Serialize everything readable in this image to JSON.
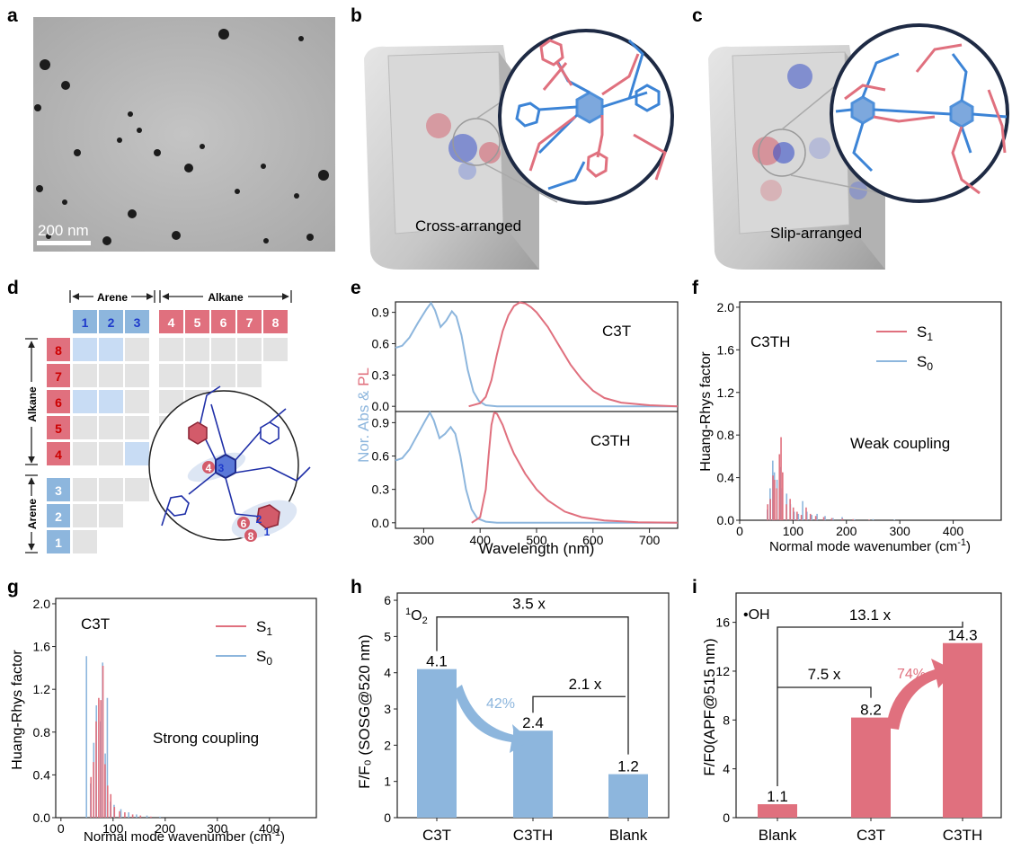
{
  "panel_letters": {
    "a": "a",
    "b": "b",
    "c": "c",
    "d": "d",
    "e": "e",
    "f": "f",
    "g": "g",
    "h": "h",
    "i": "i"
  },
  "panel_a": {
    "scale_bar": "200 nm"
  },
  "panel_b": {
    "label": "Cross-arranged"
  },
  "panel_c": {
    "label": "Slip-arranged"
  },
  "panel_d": {
    "arene_top": "Arene",
    "alkane_top": "Alkane",
    "alkane_side": "Alkane",
    "arene_side": "Arene",
    "col_labels": [
      "1",
      "2",
      "3",
      "4",
      "5",
      "6",
      "7",
      "8"
    ],
    "row_labels": [
      "8",
      "7",
      "6",
      "5",
      "4",
      "3",
      "2",
      "1"
    ],
    "mol_tags": {
      "a": "4",
      "b": "3",
      "c": "6",
      "d": "2",
      "e": "8",
      "f": "1"
    }
  },
  "chart_data": [
    {
      "id": "e",
      "type": "line",
      "xlabel": "Wavelength (nm)",
      "ylabel_abs": "Nor. Abs",
      "ylabel_amp": " & ",
      "ylabel_pl": "PL",
      "xlim": [
        250,
        750
      ],
      "ylim": [
        -0.05,
        1.0
      ],
      "xticks": [
        "300",
        "400",
        "500",
        "600",
        "700"
      ],
      "yticks": [
        "0.0",
        "0.3",
        "0.6",
        "0.9"
      ],
      "colors": {
        "abs": "#8db6dd",
        "pl": "#e0707e"
      },
      "panels": [
        {
          "name": "C3T",
          "abs": [
            [
              250,
              0.56
            ],
            [
              262,
              0.58
            ],
            [
              275,
              0.66
            ],
            [
              290,
              0.8
            ],
            [
              305,
              0.93
            ],
            [
              313,
              0.99
            ],
            [
              320,
              0.92
            ],
            [
              330,
              0.76
            ],
            [
              340,
              0.82
            ],
            [
              350,
              0.91
            ],
            [
              358,
              0.86
            ],
            [
              367,
              0.68
            ],
            [
              378,
              0.35
            ],
            [
              388,
              0.14
            ],
            [
              398,
              0.05
            ],
            [
              410,
              0.01
            ],
            [
              430,
              0.0
            ],
            [
              750,
              0.0
            ]
          ],
          "pl": [
            [
              380,
              0.0
            ],
            [
              400,
              0.03
            ],
            [
              410,
              0.09
            ],
            [
              420,
              0.25
            ],
            [
              430,
              0.5
            ],
            [
              440,
              0.72
            ],
            [
              450,
              0.87
            ],
            [
              460,
              0.96
            ],
            [
              470,
              0.995
            ],
            [
              480,
              0.985
            ],
            [
              490,
              0.95
            ],
            [
              500,
              0.9
            ],
            [
              520,
              0.76
            ],
            [
              540,
              0.58
            ],
            [
              560,
              0.4
            ],
            [
              580,
              0.26
            ],
            [
              600,
              0.15
            ],
            [
              620,
              0.08
            ],
            [
              650,
              0.035
            ],
            [
              700,
              0.01
            ],
            [
              750,
              0.0
            ]
          ]
        },
        {
          "name": "C3TH",
          "abs": [
            [
              250,
              0.56
            ],
            [
              262,
              0.58
            ],
            [
              275,
              0.66
            ],
            [
              290,
              0.8
            ],
            [
              303,
              0.92
            ],
            [
              311,
              0.99
            ],
            [
              318,
              0.92
            ],
            [
              328,
              0.76
            ],
            [
              338,
              0.8
            ],
            [
              348,
              0.86
            ],
            [
              356,
              0.8
            ],
            [
              365,
              0.6
            ],
            [
              375,
              0.3
            ],
            [
              385,
              0.12
            ],
            [
              395,
              0.04
            ],
            [
              410,
              0.01
            ],
            [
              430,
              0.0
            ],
            [
              750,
              0.0
            ]
          ],
          "pl": [
            [
              385,
              0.0
            ],
            [
              400,
              0.05
            ],
            [
              410,
              0.3
            ],
            [
              415,
              0.6
            ],
            [
              420,
              0.88
            ],
            [
              425,
              0.99
            ],
            [
              430,
              0.98
            ],
            [
              440,
              0.88
            ],
            [
              450,
              0.74
            ],
            [
              460,
              0.62
            ],
            [
              480,
              0.44
            ],
            [
              500,
              0.3
            ],
            [
              520,
              0.2
            ],
            [
              550,
              0.1
            ],
            [
              580,
              0.05
            ],
            [
              620,
              0.02
            ],
            [
              680,
              0.005
            ],
            [
              750,
              0.0
            ]
          ]
        }
      ]
    },
    {
      "id": "f",
      "type": "bar",
      "title": "C3TH",
      "annotation": "Weak  coupling",
      "xlabel": "Normal mode wavenumber (cm",
      "xlabel_sup": "-1",
      "xlabel_end": ")",
      "ylabel": "Huang-Rhys factor",
      "xlim": [
        0,
        490
      ],
      "ylim": [
        0,
        2.05
      ],
      "xticks": [
        "0",
        "100",
        "200",
        "300",
        "400"
      ],
      "yticks": [
        "0.0",
        "0.4",
        "0.8",
        "1.2",
        "1.6",
        "2.0"
      ],
      "legend": [
        {
          "name": "S",
          "sub": "1",
          "color": "#e0707e"
        },
        {
          "name": "S",
          "sub": "0",
          "color": "#8db6dd"
        }
      ],
      "s1": [
        [
          50,
          0.15
        ],
        [
          55,
          0.2
        ],
        [
          60,
          0.42
        ],
        [
          63,
          0.38
        ],
        [
          67,
          0.3
        ],
        [
          72,
          0.62
        ],
        [
          75,
          0.78
        ],
        [
          78,
          0.45
        ],
        [
          85,
          0.15
        ],
        [
          92,
          0.2
        ],
        [
          98,
          0.12
        ],
        [
          105,
          0.08
        ],
        [
          113,
          0.05
        ],
        [
          122,
          0.12
        ],
        [
          130,
          0.06
        ],
        [
          140,
          0.04
        ],
        [
          155,
          0.03
        ],
        [
          170,
          0.02
        ],
        [
          190,
          0.015
        ],
        [
          210,
          0.01
        ],
        [
          240,
          0.005
        ]
      ],
      "s0": [
        [
          52,
          0.1
        ],
        [
          57,
          0.3
        ],
        [
          62,
          0.56
        ],
        [
          65,
          0.45
        ],
        [
          70,
          0.38
        ],
        [
          76,
          0.5
        ],
        [
          80,
          0.3
        ],
        [
          88,
          0.25
        ],
        [
          95,
          0.15
        ],
        [
          102,
          0.08
        ],
        [
          110,
          0.06
        ],
        [
          118,
          0.18
        ],
        [
          126,
          0.08
        ],
        [
          135,
          0.05
        ],
        [
          145,
          0.06
        ],
        [
          160,
          0.04
        ],
        [
          175,
          0.02
        ],
        [
          192,
          0.03
        ],
        [
          215,
          0.01
        ],
        [
          250,
          0.01
        ],
        [
          290,
          0.005
        ]
      ]
    },
    {
      "id": "g",
      "type": "bar",
      "title": "C3T",
      "annotation": "Strong coupling",
      "xlabel": "Normal mode wavenumber (cm",
      "xlabel_sup": "-1",
      "xlabel_end": ")",
      "ylabel": "Huang-Rhys factor",
      "xlim": [
        -10,
        490
      ],
      "ylim": [
        0,
        2.05
      ],
      "xticks": [
        "0",
        "100",
        "200",
        "300",
        "400"
      ],
      "yticks": [
        "0.0",
        "0.4",
        "0.8",
        "1.2",
        "1.6",
        "2.0"
      ],
      "legend": [
        {
          "name": "S",
          "sub": "1",
          "color": "#e0707e"
        },
        {
          "name": "S",
          "sub": "0",
          "color": "#8db6dd"
        }
      ],
      "s1": [
        [
          55,
          0.38
        ],
        [
          60,
          0.52
        ],
        [
          65,
          0.9
        ],
        [
          70,
          1.12
        ],
        [
          74,
          1.1
        ],
        [
          78,
          1.42
        ],
        [
          82,
          0.5
        ],
        [
          87,
          0.3
        ],
        [
          93,
          0.22
        ],
        [
          100,
          0.1
        ],
        [
          110,
          0.06
        ],
        [
          120,
          0.05
        ],
        [
          135,
          0.03
        ],
        [
          150,
          0.02
        ],
        [
          170,
          0.01
        ]
      ],
      "s0": [
        [
          49,
          1.51
        ],
        [
          57,
          0.32
        ],
        [
          63,
          0.7
        ],
        [
          68,
          1.05
        ],
        [
          76,
          0.9
        ],
        [
          80,
          1.45
        ],
        [
          85,
          0.6
        ],
        [
          89,
          1.12
        ],
        [
          95,
          0.15
        ],
        [
          102,
          0.12
        ],
        [
          115,
          0.08
        ],
        [
          130,
          0.05
        ],
        [
          145,
          0.03
        ],
        [
          165,
          0.02
        ],
        [
          190,
          0.01
        ]
      ]
    },
    {
      "id": "h",
      "type": "bar",
      "ylabel": "F/F₀ (SOSG@520 nm)",
      "ylim": [
        0,
        6.2
      ],
      "yticks": [
        "0",
        "1",
        "2",
        "3",
        "4",
        "5",
        "6"
      ],
      "categories": [
        "C3T",
        "C3TH",
        "Blank"
      ],
      "values": [
        4.1,
        2.4,
        1.2
      ],
      "value_labels": [
        "4.1",
        "2.4",
        "1.2"
      ],
      "species_main": "O",
      "species_pre": "1",
      "species_sub": "2",
      "bracket_labels": [
        "3.5 x",
        "2.1 x"
      ],
      "pct": "42%",
      "color": "#8db6dd"
    },
    {
      "id": "i",
      "type": "bar",
      "ylabel": "F/F0(APF@515 nm)",
      "ylim": [
        0,
        18.4
      ],
      "yticks": [
        "0",
        "4",
        "8",
        "12",
        "16"
      ],
      "categories": [
        "Blank",
        "C3T",
        "C3TH"
      ],
      "values": [
        1.1,
        8.2,
        14.3
      ],
      "value_labels": [
        "1.1",
        "8.2",
        "14.3"
      ],
      "species": "•OH",
      "bracket_labels": [
        "13.1 x",
        "7.5 x"
      ],
      "pct": "74%",
      "color": "#e0707e"
    }
  ]
}
